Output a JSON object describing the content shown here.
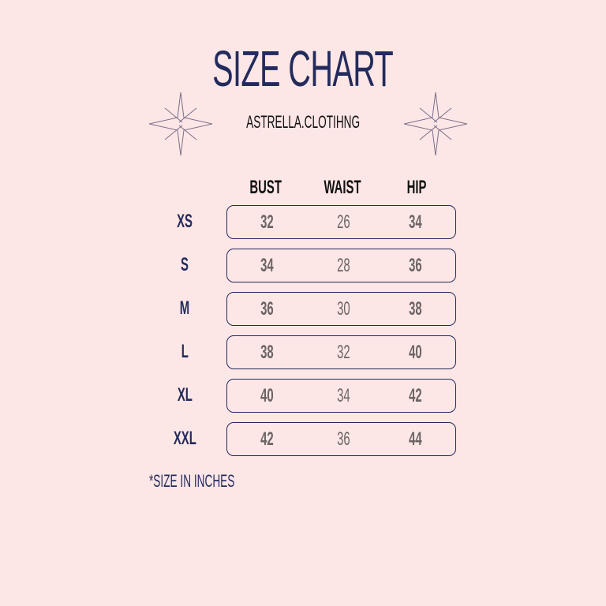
{
  "title": "SIZE CHART",
  "brand": "ASTRELLA.CLOTIHNG",
  "columns": [
    "BUST",
    "WAIST",
    "HIP"
  ],
  "rows": [
    {
      "size": "XS",
      "bust": "32",
      "waist": "26",
      "hip": "34"
    },
    {
      "size": "S",
      "bust": "34",
      "waist": "28",
      "hip": "36"
    },
    {
      "size": "M",
      "bust": "36",
      "waist": "30",
      "hip": "38"
    },
    {
      "size": "L",
      "bust": "38",
      "waist": "32",
      "hip": "40"
    },
    {
      "size": "XL",
      "bust": "40",
      "waist": "34",
      "hip": "42"
    },
    {
      "size": "XXL",
      "bust": "42",
      "waist": "36",
      "hip": "44"
    }
  ],
  "note": "*SIZE IN INCHES",
  "colors": {
    "background": "#fde6e6",
    "accent": "#232b5c",
    "values": "#6b6464"
  },
  "icons": [
    "sparkle-star-icon",
    "sparkle-star-icon"
  ]
}
